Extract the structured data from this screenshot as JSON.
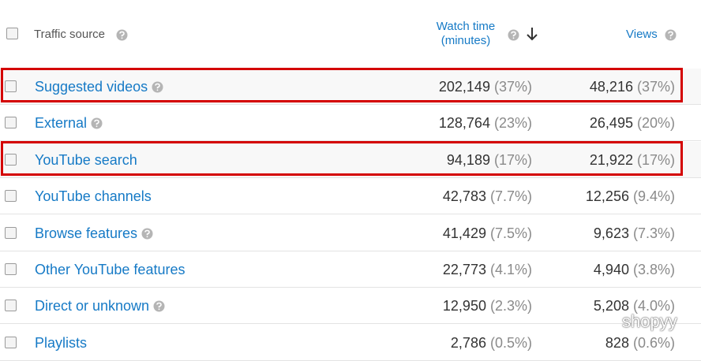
{
  "header": {
    "traffic_source": "Traffic source",
    "watch_time": [
      "Watch time",
      "(minutes)"
    ],
    "views": "Views"
  },
  "rows": [
    {
      "source": "Suggested videos",
      "help": true,
      "highlighted": true,
      "watch_time": "202,149",
      "watch_time_pct": "(37%)",
      "views": "48,216",
      "views_pct": "(37%)"
    },
    {
      "source": "External",
      "help": true,
      "highlighted": false,
      "watch_time": "128,764",
      "watch_time_pct": "(23%)",
      "views": "26,495",
      "views_pct": "(20%)"
    },
    {
      "source": "YouTube search",
      "help": false,
      "highlighted": true,
      "watch_time": "94,189",
      "watch_time_pct": "(17%)",
      "views": "21,922",
      "views_pct": "(17%)"
    },
    {
      "source": "YouTube channels",
      "help": false,
      "highlighted": false,
      "watch_time": "42,783",
      "watch_time_pct": "(7.7%)",
      "views": "12,256",
      "views_pct": "(9.4%)"
    },
    {
      "source": "Browse features",
      "help": true,
      "highlighted": false,
      "watch_time": "41,429",
      "watch_time_pct": "(7.5%)",
      "views": "9,623",
      "views_pct": "(7.3%)"
    },
    {
      "source": "Other YouTube features",
      "help": false,
      "highlighted": false,
      "watch_time": "22,773",
      "watch_time_pct": "(4.1%)",
      "views": "4,940",
      "views_pct": "(3.8%)"
    },
    {
      "source": "Direct or unknown",
      "help": true,
      "highlighted": false,
      "watch_time": "12,950",
      "watch_time_pct": "(2.3%)",
      "views": "5,208",
      "views_pct": "(4.0%)"
    },
    {
      "source": "Playlists",
      "help": false,
      "highlighted": false,
      "watch_time": "2,786",
      "watch_time_pct": "(0.5%)",
      "views": "828",
      "views_pct": "(0.6%)"
    }
  ],
  "watermark": "shopyy"
}
